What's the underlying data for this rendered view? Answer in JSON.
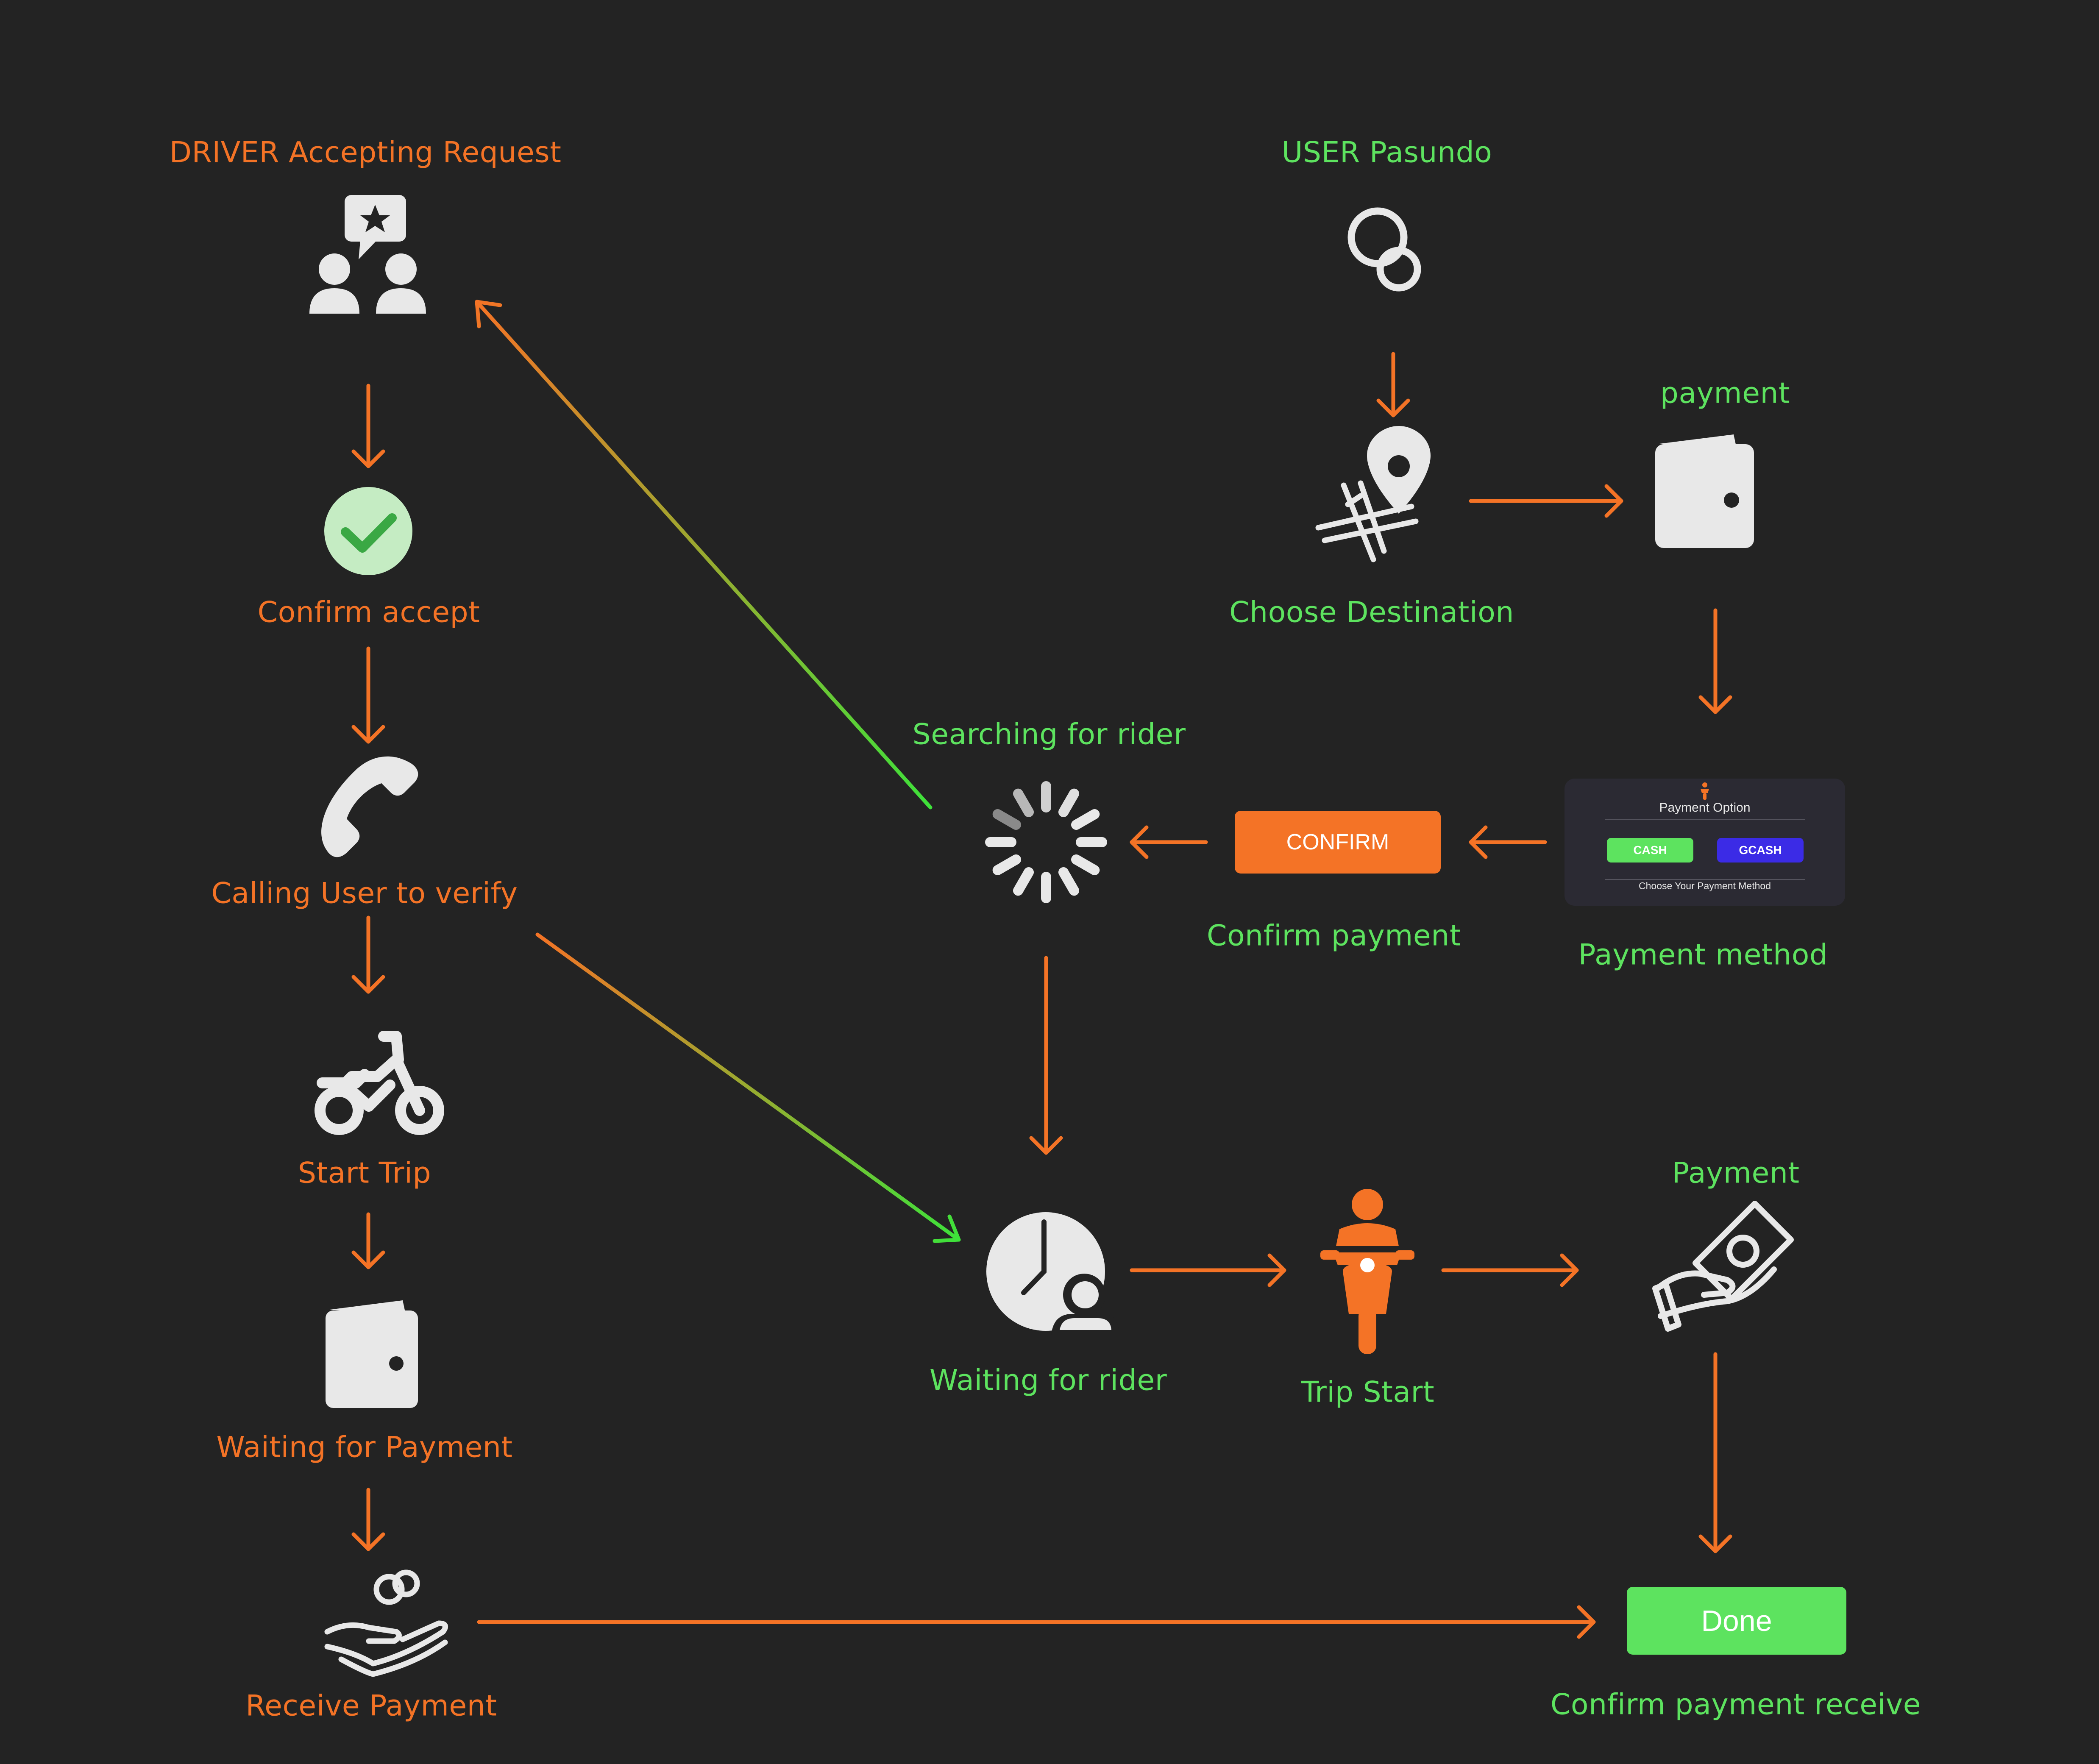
{
  "colors": {
    "background": "#232323",
    "orange": "#f47326",
    "green": "#5de35f",
    "icon": "#e8e8e8",
    "gcash": "#3b2be6"
  },
  "driver": {
    "title": "DRIVER Accepting Request",
    "confirm_accept": "Confirm accept",
    "calling": "Calling User to verify",
    "start_trip": "Start Trip",
    "waiting_payment": "Waiting for Payment",
    "receive_payment": "Receive Payment"
  },
  "user": {
    "title": "USER Pasundo",
    "choose_destination": "Choose Destination",
    "payment": "payment",
    "payment_method": "Payment method",
    "confirm_payment": "Confirm payment",
    "searching": "Searching for rider",
    "waiting_rider": "Waiting for rider",
    "trip_start": "Trip Start",
    "payment2": "Payment",
    "confirm_receive": "Confirm payment receive"
  },
  "buttons": {
    "confirm": "CONFIRM",
    "done": "Done"
  },
  "payment_card": {
    "title": "Payment Option",
    "cash": "CASH",
    "gcash": "GCASH",
    "footer": "Choose Your Payment Method"
  },
  "icons": [
    "group-star-icon",
    "check-circle-icon",
    "phone-icon",
    "motorcycle-icon",
    "wallet-icon",
    "hand-coins-icon",
    "search-icon",
    "map-pin-icon",
    "spinner-icon",
    "clock-person-icon",
    "rider-icon",
    "hand-money-icon"
  ]
}
